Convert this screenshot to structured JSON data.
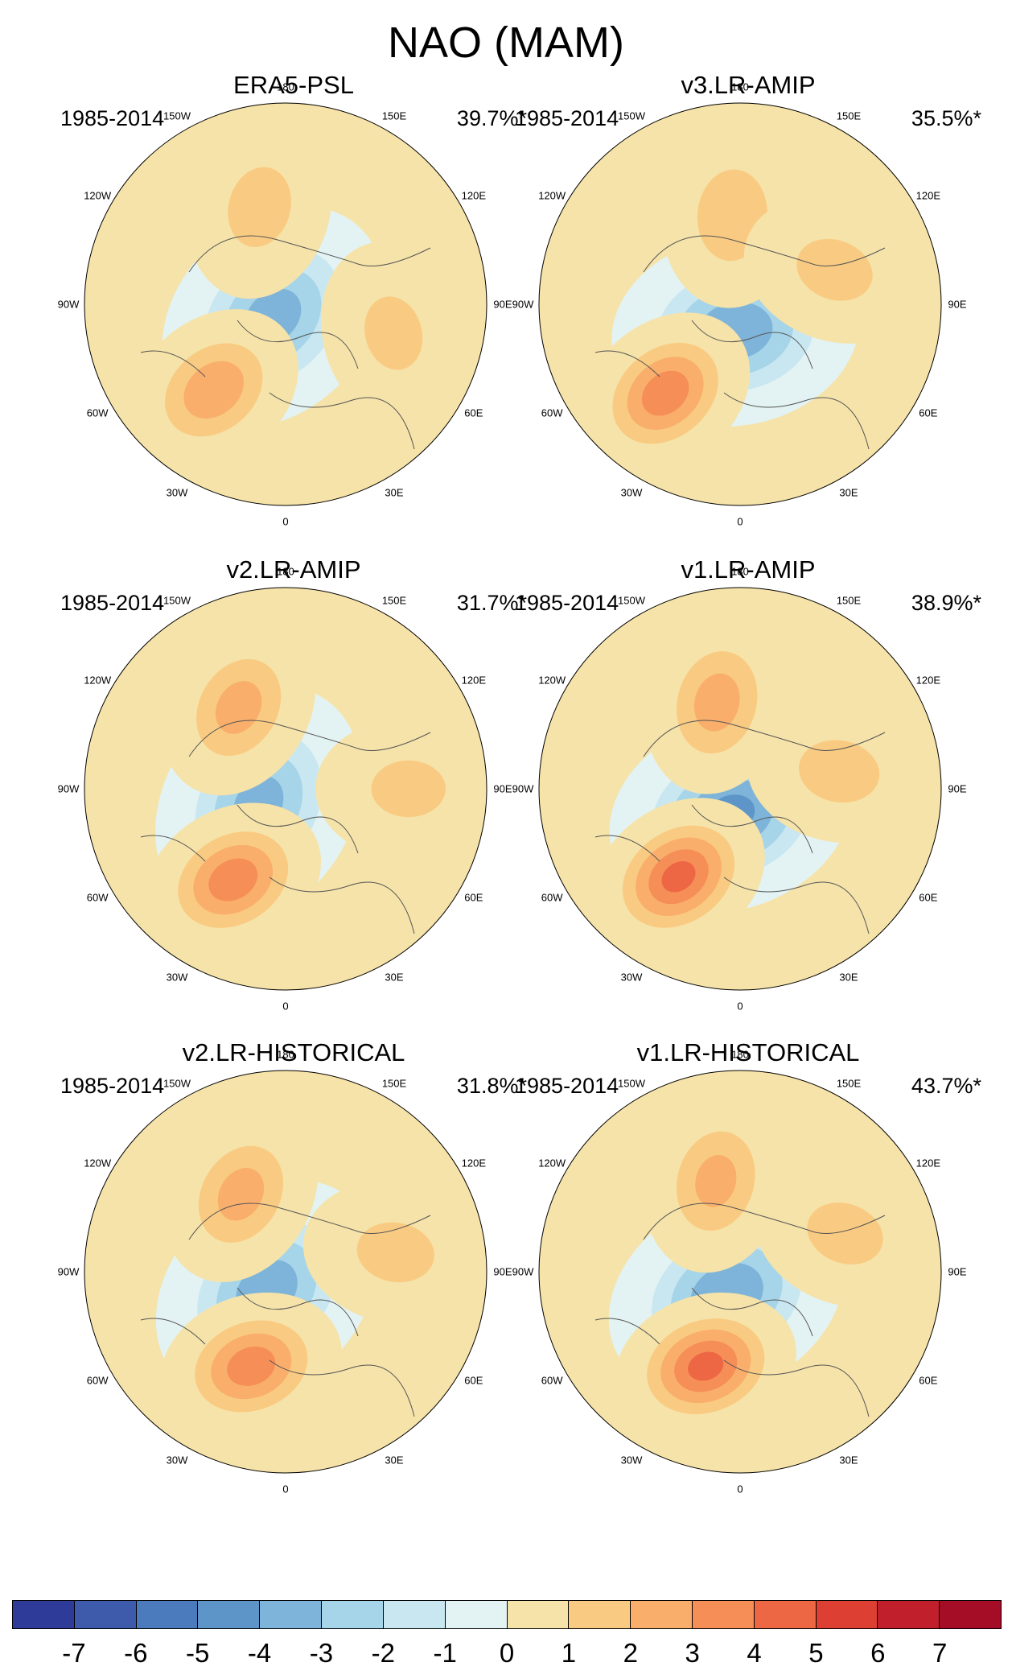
{
  "title": "NAO (MAM)",
  "longitude_labels": [
    "180",
    "150E",
    "120E",
    "90E",
    "60E",
    "30E",
    "0",
    "30W",
    "60W",
    "90W",
    "120W",
    "150W"
  ],
  "panels": [
    {
      "title": "ERA5-PSL",
      "period": "1985-2014",
      "variance": "39.7%*",
      "anomalies": [
        {
          "field": "low",
          "lon": -45,
          "colat": 8,
          "strength": 3.4
        },
        {
          "field": "high",
          "lon": -40,
          "colat": 50,
          "strength": 2.6
        },
        {
          "field": "high",
          "lon": -165,
          "colat": 45,
          "strength": 1.2
        },
        {
          "field": "high",
          "lon": 75,
          "colat": 50,
          "strength": 1.0
        }
      ]
    },
    {
      "title": "v3.LR-AMIP",
      "period": "1985-2014",
      "variance": "35.5%*",
      "anomalies": [
        {
          "field": "low",
          "lon": -10,
          "colat": 12,
          "strength": 3.8
        },
        {
          "field": "high",
          "lon": -40,
          "colat": 52,
          "strength": 3.6
        },
        {
          "field": "high",
          "lon": -175,
          "colat": 40,
          "strength": 1.6
        },
        {
          "field": "high",
          "lon": 110,
          "colat": 45,
          "strength": 1.1
        }
      ]
    },
    {
      "title": "v2.LR-AMIP",
      "period": "1985-2014",
      "variance": "31.7%*",
      "anomalies": [
        {
          "field": "low",
          "lon": -60,
          "colat": 14,
          "strength": 3.3
        },
        {
          "field": "high",
          "lon": -30,
          "colat": 47,
          "strength": 3.6
        },
        {
          "field": "high",
          "lon": -150,
          "colat": 42,
          "strength": 2.2
        },
        {
          "field": "high",
          "lon": 90,
          "colat": 55,
          "strength": 1.0
        }
      ]
    },
    {
      "title": "v1.LR-AMIP",
      "period": "1985-2014",
      "variance": "38.9%*",
      "anomalies": [
        {
          "field": "low",
          "lon": -20,
          "colat": 12,
          "strength": 4.3
        },
        {
          "field": "high",
          "lon": -35,
          "colat": 48,
          "strength": 4.3
        },
        {
          "field": "high",
          "lon": -165,
          "colat": 40,
          "strength": 2.3
        },
        {
          "field": "high",
          "lon": 100,
          "colat": 45,
          "strength": 1.2
        }
      ]
    },
    {
      "title": "v2.LR-HISTORICAL",
      "period": "1985-2014",
      "variance": "31.8%*",
      "anomalies": [
        {
          "field": "low",
          "lon": -45,
          "colat": 12,
          "strength": 3.6
        },
        {
          "field": "high",
          "lon": -20,
          "colat": 45,
          "strength": 3.5
        },
        {
          "field": "high",
          "lon": -150,
          "colat": 40,
          "strength": 2.2
        },
        {
          "field": "high",
          "lon": 100,
          "colat": 50,
          "strength": 1.1
        }
      ]
    },
    {
      "title": "v1.LR-HISTORICAL",
      "period": "1985-2014",
      "variance": "43.7%*",
      "anomalies": [
        {
          "field": "low",
          "lon": -30,
          "colat": 12,
          "strength": 3.9
        },
        {
          "field": "high",
          "lon": -20,
          "colat": 45,
          "strength": 4.3
        },
        {
          "field": "high",
          "lon": -165,
          "colat": 42,
          "strength": 2.1
        },
        {
          "field": "high",
          "lon": 110,
          "colat": 50,
          "strength": 1.1
        }
      ]
    }
  ],
  "colorbar": {
    "labels": [
      "-7",
      "-6",
      "-5",
      "-4",
      "-3",
      "-2",
      "-1",
      "0",
      "1",
      "2",
      "3",
      "4",
      "5",
      "6",
      "7"
    ],
    "colors": [
      "#2e3b98",
      "#3e5aab",
      "#4b7bbd",
      "#5e95c8",
      "#7eb4d9",
      "#a6d4e8",
      "#c9e7f1",
      "#e3f2f2",
      "#f6e3a9",
      "#f9cb82",
      "#f9ae6c",
      "#f68e57",
      "#ee6744",
      "#dd3f32",
      "#c21f2d",
      "#a50c26"
    ]
  }
}
